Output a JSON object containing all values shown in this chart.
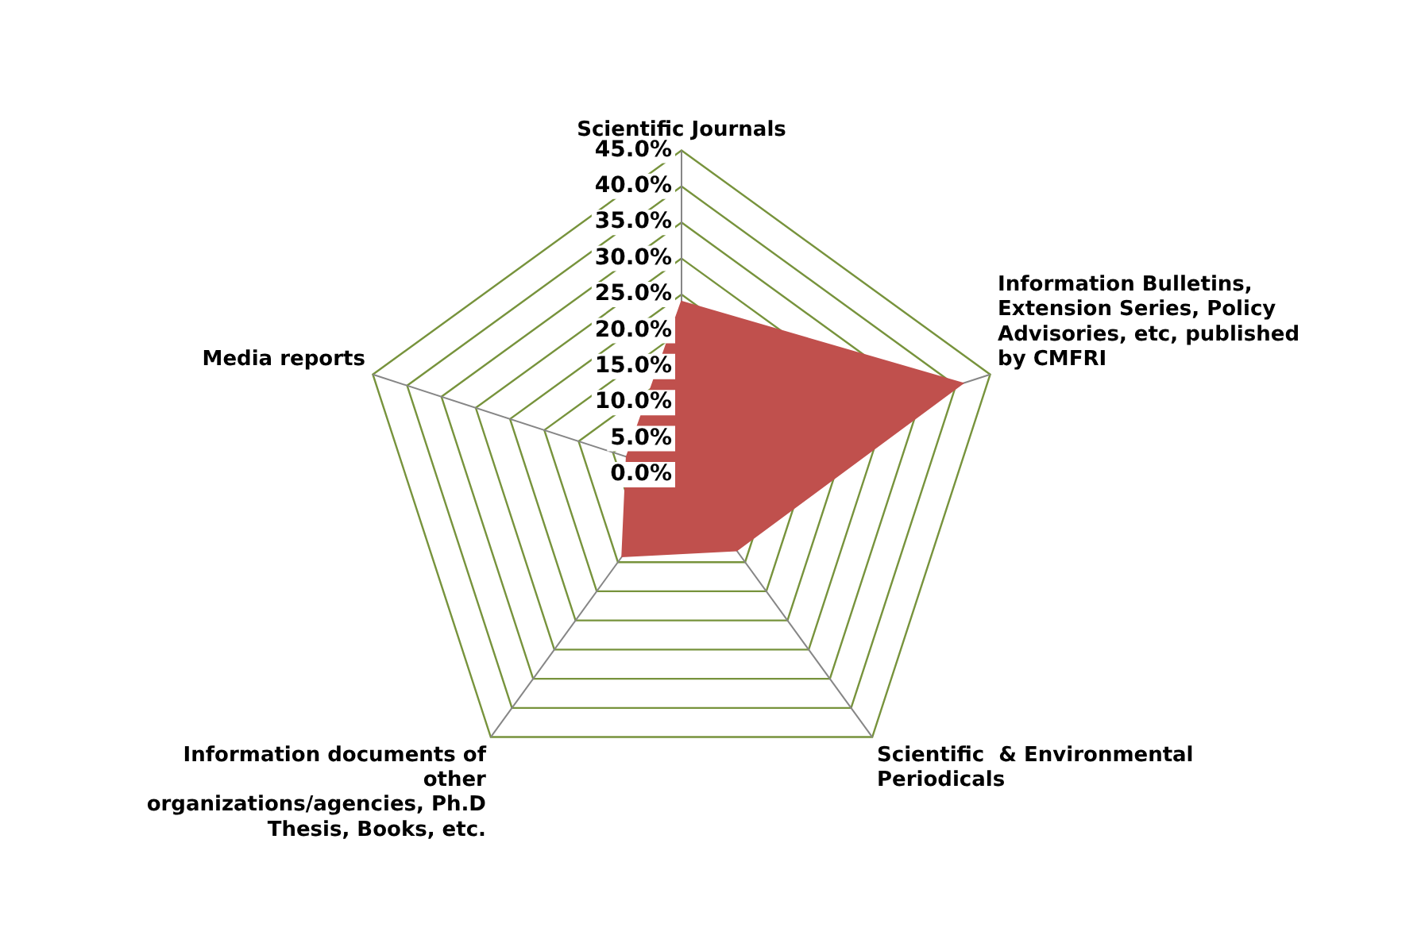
{
  "chart_data": {
    "type": "radar",
    "categories": [
      "Scientific Journals",
      "Information Bulletins, Extension Series, Policy Advisories, etc, published by CMFRI",
      "Scientific  & Environmental Periodicals",
      "Information documents of other organizations/agencies, Ph.D Thesis, Books, etc.",
      "Media reports"
    ],
    "series": [
      {
        "color": "#c0504d",
        "values": [
          24,
          41,
          13,
          14,
          8
        ]
      }
    ],
    "ylim": [
      0,
      45
    ],
    "yticks": [
      {
        "value": 0,
        "label": "0.0%"
      },
      {
        "value": 5,
        "label": "5.0%"
      },
      {
        "value": 10,
        "label": "10.0%"
      },
      {
        "value": 15,
        "label": "15.0%"
      },
      {
        "value": 20,
        "label": "20.0%"
      },
      {
        "value": 25,
        "label": "25.0%"
      },
      {
        "value": 30,
        "label": "30.0%"
      },
      {
        "value": 35,
        "label": "35.0%"
      },
      {
        "value": 40,
        "label": "40.0%"
      },
      {
        "value": 45,
        "label": "45.0%"
      }
    ],
    "grid": true,
    "legend": false
  }
}
